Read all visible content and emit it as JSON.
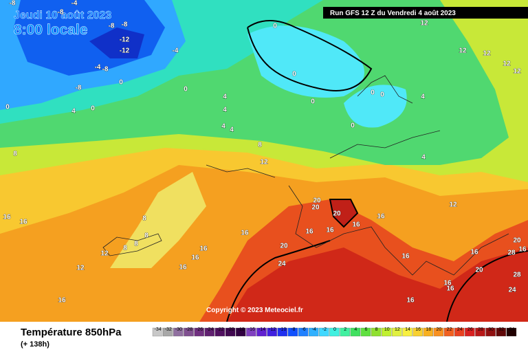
{
  "header": {
    "date": "Jeudi 10 août 2023",
    "time": "8:00 locale",
    "run": "Run GFS 12 Z du Vendredi 4 août 2023",
    "copyright": "Copyright © 2023 Meteociel.fr"
  },
  "legend": {
    "title": "Température 850hPa",
    "lead": "(+ 138h)",
    "scale": [
      -34,
      -32,
      -30,
      -28,
      -26,
      -24,
      -22,
      -20,
      -18,
      -16,
      -14,
      -12,
      -10,
      -8,
      -6,
      -4,
      -2,
      0,
      2,
      4,
      6,
      8,
      10,
      12,
      14,
      16,
      18,
      20,
      22,
      24,
      26,
      28,
      30,
      32,
      34
    ]
  },
  "contour_labels": [
    -8,
    -4,
    -8,
    -8,
    -8,
    -12,
    -12,
    -4,
    -4,
    -8,
    0,
    -8,
    4,
    0,
    0,
    0,
    0,
    0,
    0,
    4,
    4,
    4,
    4,
    8,
    12,
    8,
    16,
    16,
    8,
    8,
    8,
    8,
    12,
    12,
    16,
    16,
    16,
    16,
    16,
    20,
    20,
    20,
    16,
    16,
    16,
    16,
    20,
    24,
    16,
    16,
    16,
    16,
    20,
    16,
    20,
    16,
    28,
    28,
    24,
    12,
    12,
    12,
    12,
    12,
    12,
    4,
    4,
    0,
    0,
    0
  ]
}
